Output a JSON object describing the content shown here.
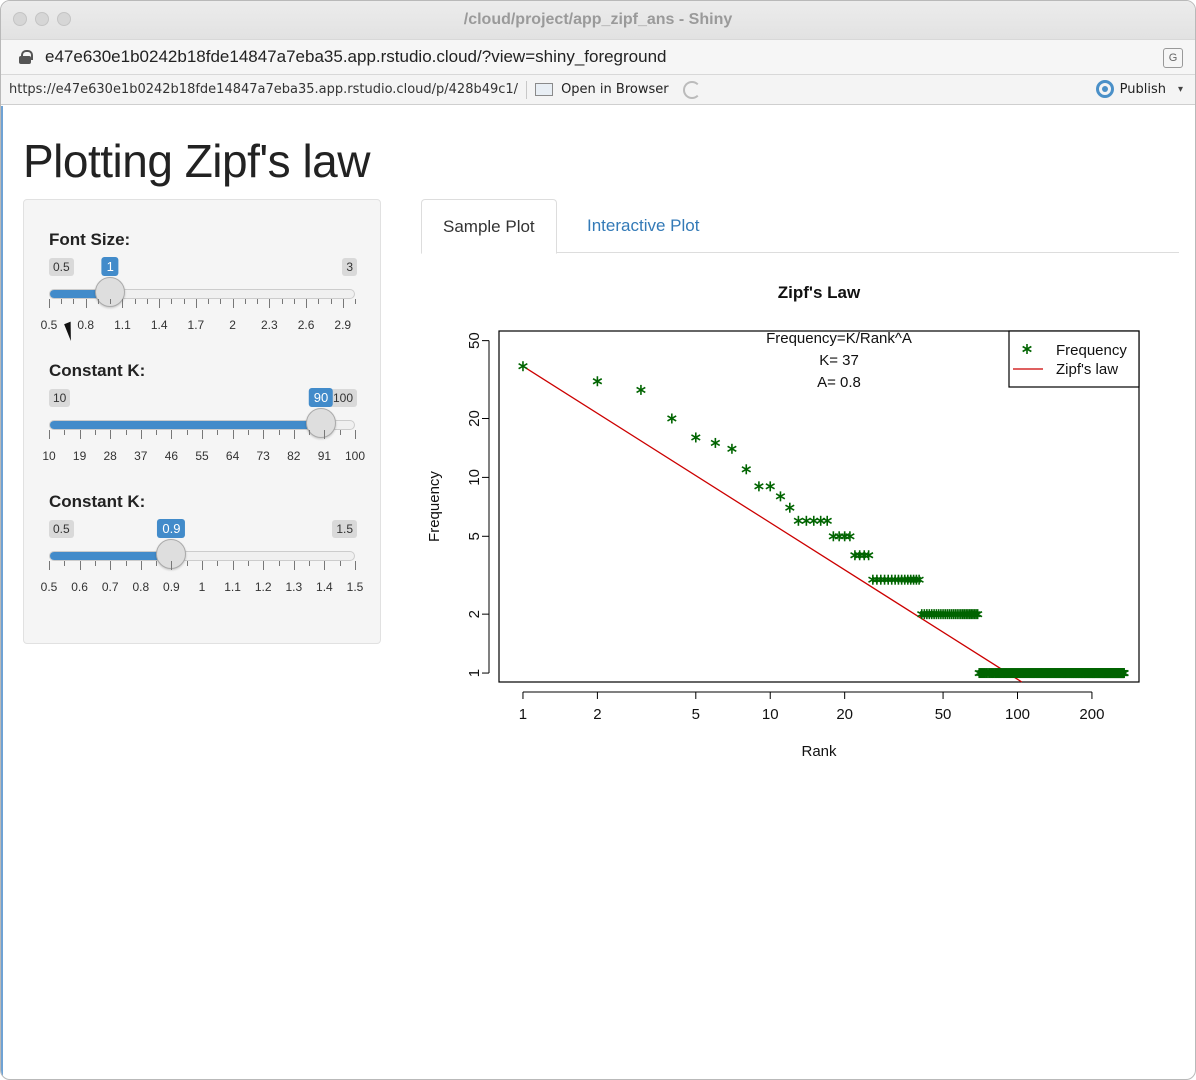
{
  "window": {
    "title": "/cloud/project/app_zipf_ans - Shiny"
  },
  "address_bar": {
    "url": "e47e630e1b0242b18fde14847a7eba35.app.rstudio.cloud/?view=shiny_foreground"
  },
  "toolbar": {
    "url": "https://e47e630e1b0242b18fde14847a7eba35.app.rstudio.cloud/p/428b49c1/",
    "open_in_browser": "Open in Browser",
    "publish": "Publish"
  },
  "page": {
    "title": "Plotting Zipf's law"
  },
  "sliders": [
    {
      "label": "Font Size:",
      "min": 0.5,
      "max": 3,
      "value": 1,
      "min_label": "0.5",
      "max_label": "3",
      "value_label": "1",
      "tick_labels": [
        "0.5",
        "0.8",
        "1.1",
        "1.4",
        "1.7",
        "2",
        "2.3",
        "2.6",
        "2.9"
      ],
      "tick_values": [
        0.5,
        0.8,
        1.1,
        1.4,
        1.7,
        2.0,
        2.3,
        2.6,
        2.9
      ],
      "minor_step": 0.1
    },
    {
      "label": "Constant K:",
      "min": 10,
      "max": 100,
      "value": 90,
      "min_label": "10",
      "max_label": "100",
      "value_label": "90",
      "tick_labels": [
        "10",
        "19",
        "28",
        "37",
        "46",
        "55",
        "64",
        "73",
        "82",
        "91",
        "100"
      ],
      "tick_values": [
        10,
        19,
        28,
        37,
        46,
        55,
        64,
        73,
        82,
        91,
        100
      ],
      "minor_step": 4.5
    },
    {
      "label": "Constant K:",
      "min": 0.5,
      "max": 1.5,
      "value": 0.9,
      "min_label": "0.5",
      "max_label": "1.5",
      "value_label": "0.9",
      "tick_labels": [
        "0.5",
        "0.6",
        "0.7",
        "0.8",
        "0.9",
        "1",
        "1.1",
        "1.2",
        "1.3",
        "1.4",
        "1.5"
      ],
      "tick_values": [
        0.5,
        0.6,
        0.7,
        0.8,
        0.9,
        1.0,
        1.1,
        1.2,
        1.3,
        1.4,
        1.5
      ],
      "minor_step": 0.05
    }
  ],
  "tabs": [
    {
      "label": "Sample Plot",
      "active": true
    },
    {
      "label": "Interactive Plot",
      "active": false
    }
  ],
  "colors": {
    "accent": "#428bca",
    "link": "#337ab7",
    "points": "#006400",
    "line": "#cc0000"
  },
  "chart_data": {
    "type": "scatter",
    "title": "Zipf's Law",
    "xlabel": "Rank",
    "ylabel": "Frequency",
    "log_x": true,
    "log_y": true,
    "xlim": [
      0.8,
      310
    ],
    "ylim": [
      0.9,
      56
    ],
    "x_ticks": [
      1,
      2,
      5,
      10,
      20,
      50,
      100,
      200
    ],
    "x_tick_labels": [
      "1",
      "2",
      "5",
      "10",
      "20",
      "50",
      "100",
      "200"
    ],
    "y_ticks": [
      1,
      2,
      5,
      10,
      20,
      50
    ],
    "y_tick_labels": [
      "1",
      "2",
      "5",
      "10",
      "20",
      "50"
    ],
    "annotation": [
      "Frequency=K/Rank^A",
      "K= 37",
      "A= 0.8"
    ],
    "legend": {
      "position": "top-right",
      "entries": [
        "Frequency",
        "Zipf's law"
      ]
    },
    "series": [
      {
        "name": "Frequency",
        "type": "points",
        "marker": "*",
        "points": [
          [
            1,
            37
          ],
          [
            2,
            31
          ],
          [
            3,
            28
          ],
          [
            4,
            20
          ],
          [
            5,
            16
          ],
          [
            6,
            15
          ],
          [
            7,
            14
          ],
          [
            8,
            11
          ],
          [
            9,
            9
          ],
          [
            10,
            9
          ],
          [
            11,
            8
          ],
          [
            12,
            7
          ],
          [
            13,
            6
          ],
          [
            14,
            6
          ],
          [
            15,
            6
          ],
          [
            16,
            6
          ],
          [
            17,
            6
          ]
        ],
        "runs": [
          {
            "from": 18,
            "to": 21,
            "y": 5
          },
          {
            "from": 22,
            "to": 25,
            "y": 4
          },
          {
            "from": 26,
            "to": 40,
            "y": 3
          },
          {
            "from": 41,
            "to": 69,
            "y": 2
          },
          {
            "from": 70,
            "to": 270,
            "y": 1
          }
        ]
      },
      {
        "name": "Zipf's law",
        "type": "line",
        "K": 37,
        "A": 0.8
      }
    ]
  }
}
